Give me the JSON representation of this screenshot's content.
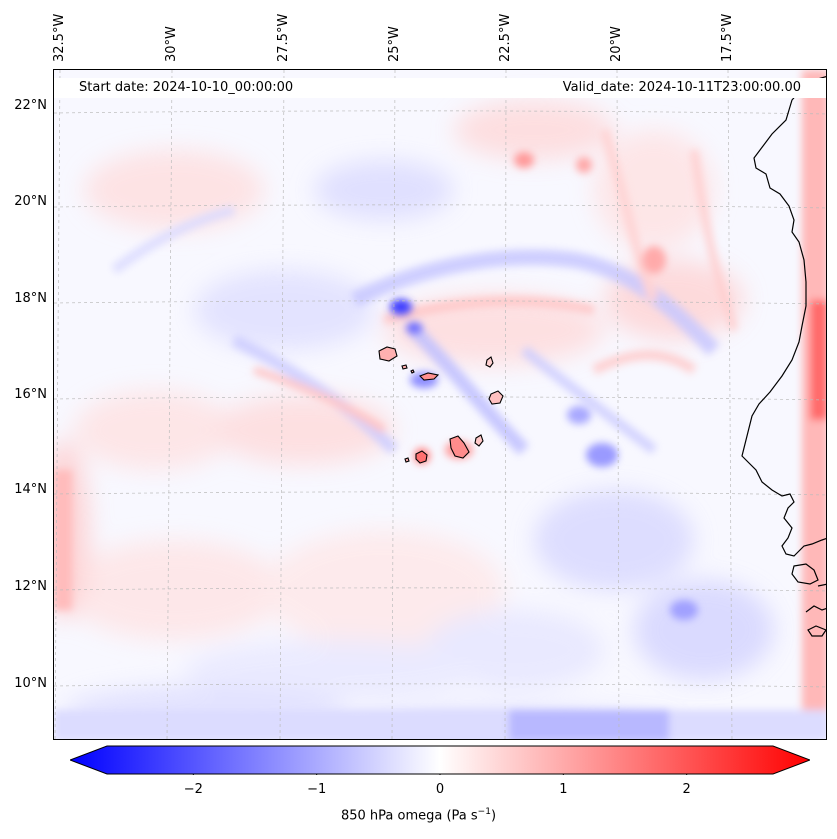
{
  "map": {
    "start_date": "Start date: 2024-10-10_00:00:00",
    "valid_date": "Valid_date: 2024-10-11T23:00:00.00",
    "lon_labels": [
      "32.5°W",
      "30°W",
      "27.5°W",
      "25°W",
      "22.5°W",
      "20°W",
      "17.5°W"
    ],
    "lat_labels": [
      "22°N",
      "20°N",
      "18°N",
      "16°N",
      "14°N",
      "12°N",
      "10°N"
    ],
    "land_outline_color": "#000000",
    "gridline_color": "#bbbbbb"
  },
  "colorbar": {
    "label": "850 hPa omega (Pa s",
    "label_sup": "−1",
    "label_close": ")",
    "ticks": [
      "−2",
      "−1",
      "0",
      "1",
      "2"
    ],
    "tick_values": [
      -2,
      -1,
      0,
      1,
      2
    ],
    "range": [
      -2.7,
      2.7
    ],
    "colormap": "bwr",
    "color_min": "#0000ff",
    "color_mid": "#ffffff",
    "color_max": "#ff0000"
  }
}
